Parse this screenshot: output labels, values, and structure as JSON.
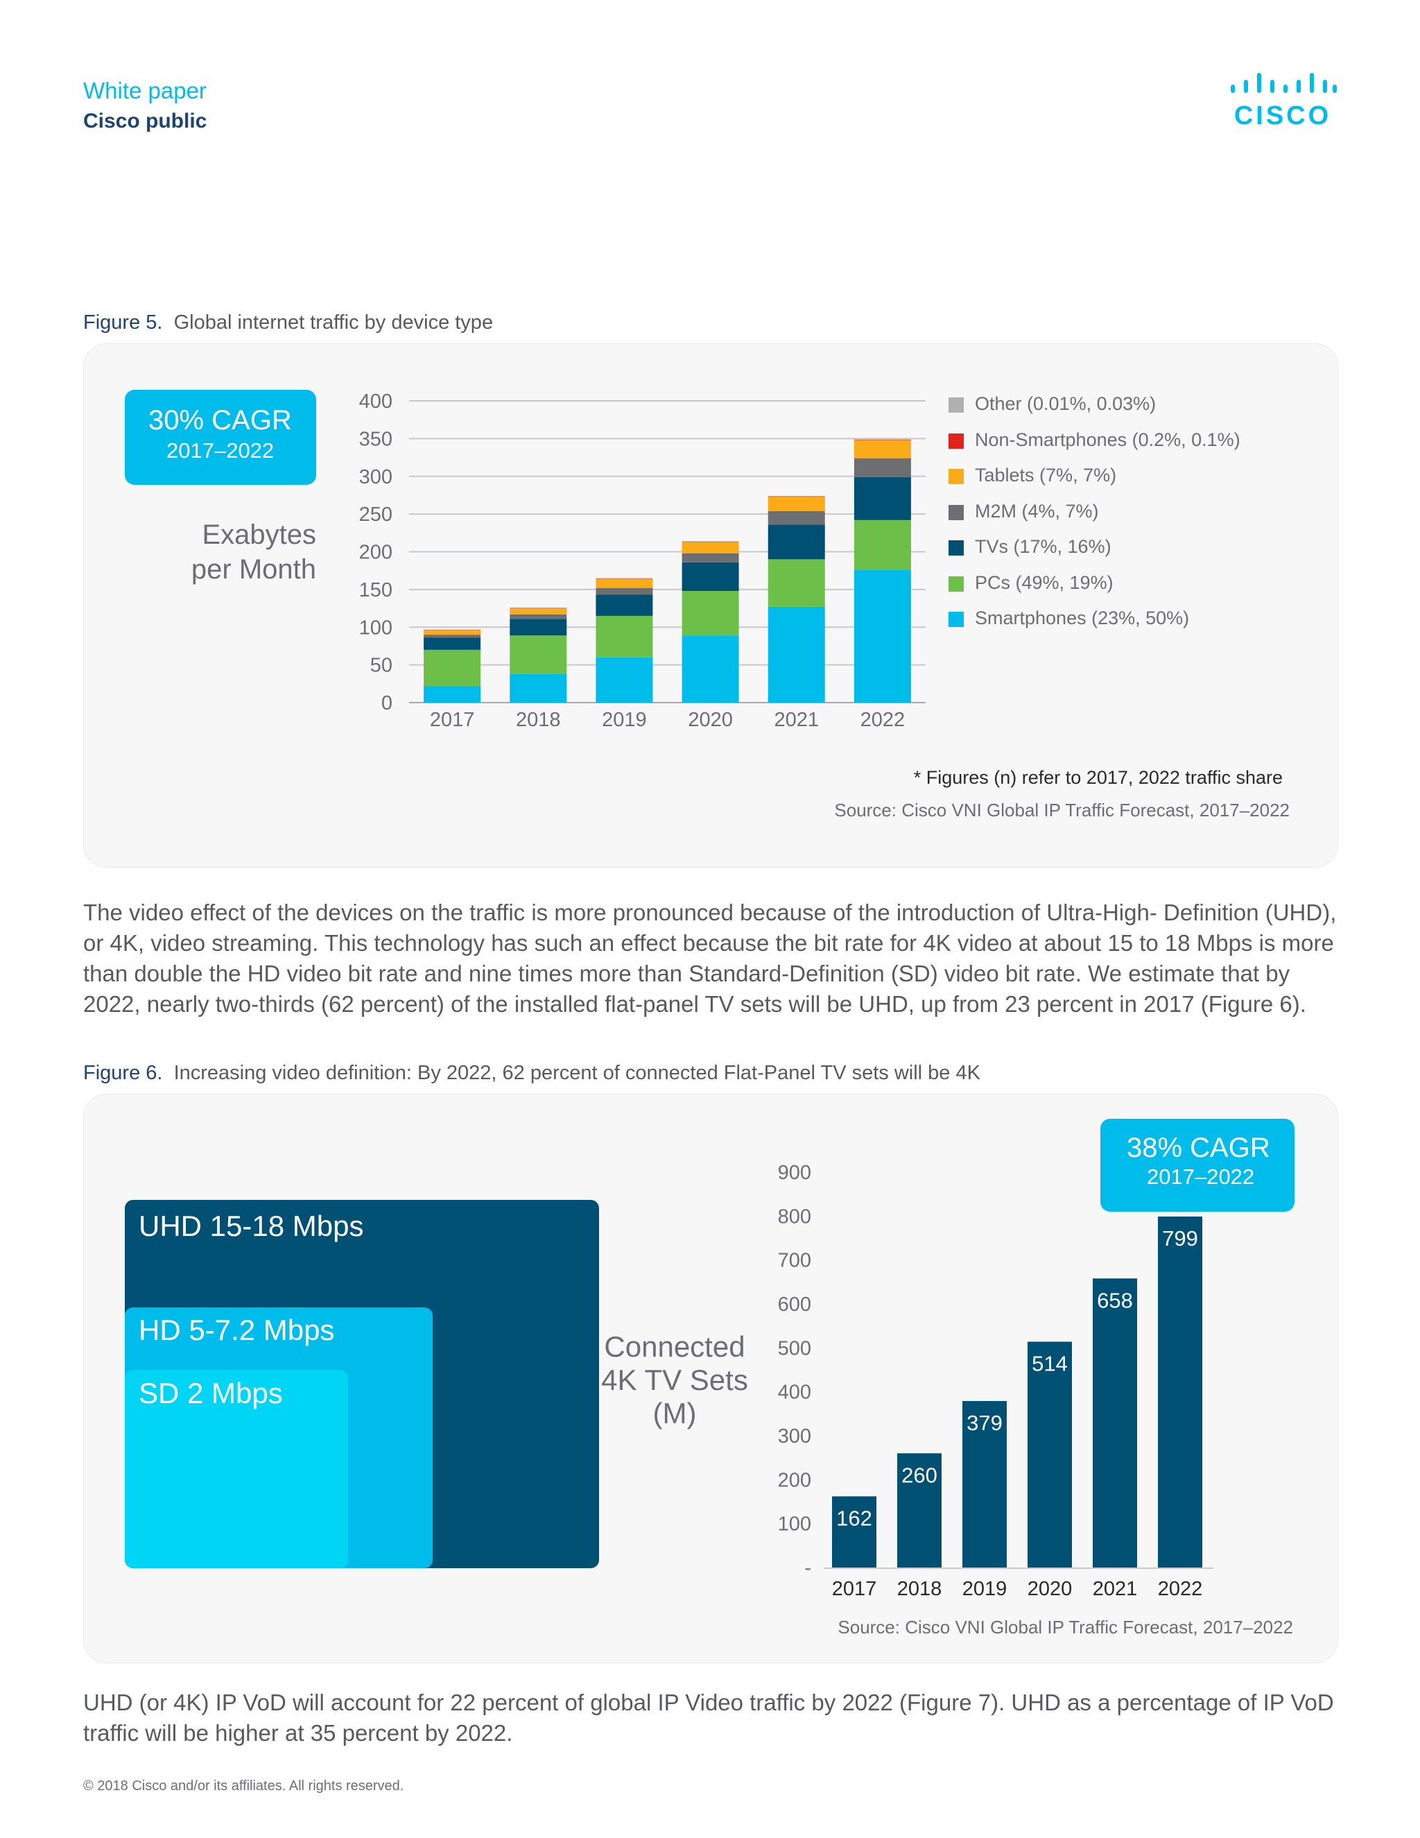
{
  "header": {
    "doc_type": "White paper",
    "classification": "Cisco public",
    "logo_text": "CISCO",
    "logo_icon": "cisco-bridge-logo"
  },
  "figure5": {
    "caption_label": "Figure 5.",
    "caption_text": "Global internet traffic by device type",
    "cagr_big": "30% CAGR",
    "cagr_small": "2017–2022",
    "y_title_line1": "Exabytes",
    "y_title_line2": "per Month",
    "note": "* Figures (n) refer to 2017, 2022 traffic share",
    "source": "Source: Cisco VNI Global IP Traffic Forecast, 2017–2022"
  },
  "paragraph1": "The video effect of the devices on the traffic is more pronounced because of the introduction of Ultra-High- Definition (UHD), or 4K, video streaming. This technology has such an effect because the bit rate for 4K video at about 15 to 18 Mbps is more than double the HD video bit rate and nine times more than Standard-Definition (SD) video bit rate. We estimate that by 2022, nearly two-thirds (62 percent) of the installed flat-panel TV sets will be UHD, up from 23 percent in 2017 (Figure 6).",
  "figure6": {
    "caption_label": "Figure 6.",
    "caption_text": "Increasing video definition: By 2022, 62 percent of connected Flat-Panel TV sets will be 4K",
    "uhd_label": "UHD 15-18 Mbps",
    "hd_label": "HD 5-7.2 Mbps",
    "sd_label": "SD 2 Mbps",
    "y_title_line1": "Connected",
    "y_title_line2": "4K TV Sets",
    "y_title_line3": "(M)",
    "cagr_big": "38% CAGR",
    "cagr_small": "2017–2022",
    "source": "Source: Cisco VNI Global IP Traffic Forecast, 2017–2022"
  },
  "paragraph2": "UHD (or 4K) IP VoD will account for 22 percent of global IP Video traffic by 2022 (Figure 7). UHD as a percentage of IP VoD traffic will be higher at 35 percent by 2022.",
  "footer": "© 2018 Cisco and/or its affiliates. All rights reserved.",
  "colors": {
    "cisco_blue": "#00bceb",
    "navy": "#1e4471",
    "smartphones": "#00bceb",
    "pcs": "#6cc04a",
    "tvs": "#005073",
    "m2m": "#6d6e71",
    "tablets": "#fbab18",
    "non_smartphones": "#e2231a",
    "other": "#b0b0b0",
    "uhd": "#005073",
    "hd": "#00bceb",
    "sd": "#00d5f5"
  },
  "chart_data": [
    {
      "type": "bar",
      "stacked": true,
      "title": "Global internet traffic by device type",
      "ylabel": "Exabytes per Month",
      "xlabel": "",
      "ylim": [
        0,
        400
      ],
      "yticks": [
        0,
        50,
        100,
        150,
        200,
        250,
        300,
        350,
        400
      ],
      "grid": true,
      "legend_position": "right",
      "categories": [
        "2017",
        "2018",
        "2019",
        "2020",
        "2021",
        "2022"
      ],
      "series": [
        {
          "name": "Smartphones (23%, 50%)",
          "color": "#00bceb",
          "values": [
            22,
            38,
            60,
            89,
            127,
            176
          ]
        },
        {
          "name": "PCs (49%, 19%)",
          "color": "#6cc04a",
          "values": [
            48,
            51,
            55,
            59,
            63,
            66
          ]
        },
        {
          "name": "TVs (17%, 16%)",
          "color": "#005073",
          "values": [
            16,
            22,
            28,
            38,
            46,
            57
          ]
        },
        {
          "name": "M2M (4%, 7%)",
          "color": "#6d6e71",
          "values": [
            4,
            6,
            9,
            12,
            18,
            25
          ]
        },
        {
          "name": "Tablets (7%, 7%)",
          "color": "#fbab18",
          "values": [
            6,
            8,
            12,
            15,
            19,
            24
          ]
        },
        {
          "name": "Non-Smartphones (0.2%, 0.1%)",
          "color": "#e2231a",
          "values": [
            0.2,
            0.2,
            0.3,
            0.3,
            0.3,
            0.4
          ]
        },
        {
          "name": "Other (0.01%, 0.03%)",
          "color": "#b0b0b0",
          "values": [
            0.01,
            0.02,
            0.04,
            0.06,
            0.08,
            0.1
          ]
        }
      ]
    },
    {
      "type": "bar",
      "title": "Increasing video definition: By 2022, 62 percent of connected Flat-Panel TV sets will be 4K",
      "ylabel": "Connected 4K TV Sets (M)",
      "xlabel": "",
      "ylim": [
        0,
        900
      ],
      "yticks": [
        "-",
        "100",
        "200",
        "300",
        "400",
        "500",
        "600",
        "700",
        "800",
        "900"
      ],
      "grid": false,
      "categories": [
        "2017",
        "2018",
        "2019",
        "2020",
        "2021",
        "2022"
      ],
      "values": [
        162,
        260,
        379,
        514,
        658,
        799
      ],
      "data_labels": [
        "162",
        "260",
        "379",
        "514",
        "658",
        "799"
      ],
      "color": "#005073"
    }
  ]
}
